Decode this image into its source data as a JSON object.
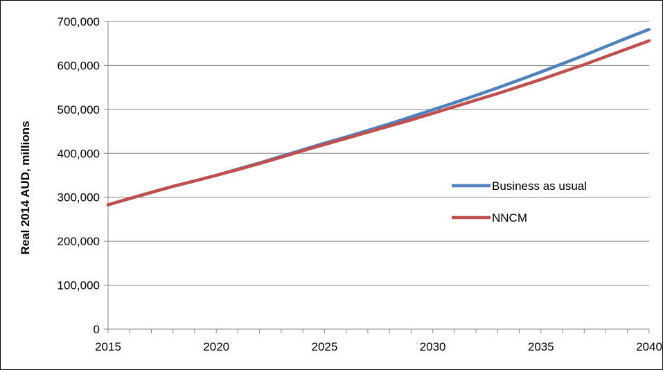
{
  "chart_data": {
    "type": "line",
    "title": "",
    "xlabel": "",
    "ylabel": "Real 2014 AUD, millions",
    "xlim": [
      2015,
      2040
    ],
    "ylim": [
      0,
      700000
    ],
    "x_ticks": [
      2015,
      2020,
      2025,
      2030,
      2035,
      2040
    ],
    "x_tick_labels": [
      "2015",
      "2020",
      "2025",
      "2030",
      "2035",
      "2040"
    ],
    "y_ticks": [
      0,
      100000,
      200000,
      300000,
      400000,
      500000,
      600000,
      700000
    ],
    "y_tick_labels": [
      "0",
      "100,000",
      "200,000",
      "300,000",
      "400,000",
      "500,000",
      "600,000",
      "700,000"
    ],
    "grid": "horizontal",
    "legend_position": "right",
    "x": [
      2015,
      2016,
      2017,
      2018,
      2019,
      2020,
      2021,
      2022,
      2023,
      2024,
      2025,
      2026,
      2027,
      2028,
      2029,
      2030,
      2031,
      2032,
      2033,
      2034,
      2035,
      2036,
      2037,
      2038,
      2039,
      2040
    ],
    "series": [
      {
        "name": "Business as usual",
        "color": "#4F81BD",
        "values": [
          283000,
          297000,
          311000,
          325000,
          337000,
          350000,
          364000,
          378000,
          393000,
          408000,
          423000,
          437000,
          452000,
          467000,
          483000,
          499000,
          515000,
          532000,
          549000,
          567000,
          585000,
          604000,
          623000,
          643000,
          663000,
          682000
        ]
      },
      {
        "name": "NNCM",
        "color": "#C0504D",
        "values": [
          283000,
          297000,
          311000,
          325000,
          337000,
          350000,
          363000,
          377000,
          391000,
          406000,
          420000,
          434000,
          448000,
          462000,
          476000,
          491000,
          506000,
          521000,
          536000,
          552000,
          568000,
          585000,
          602000,
          620000,
          638000,
          656000
        ]
      }
    ]
  }
}
